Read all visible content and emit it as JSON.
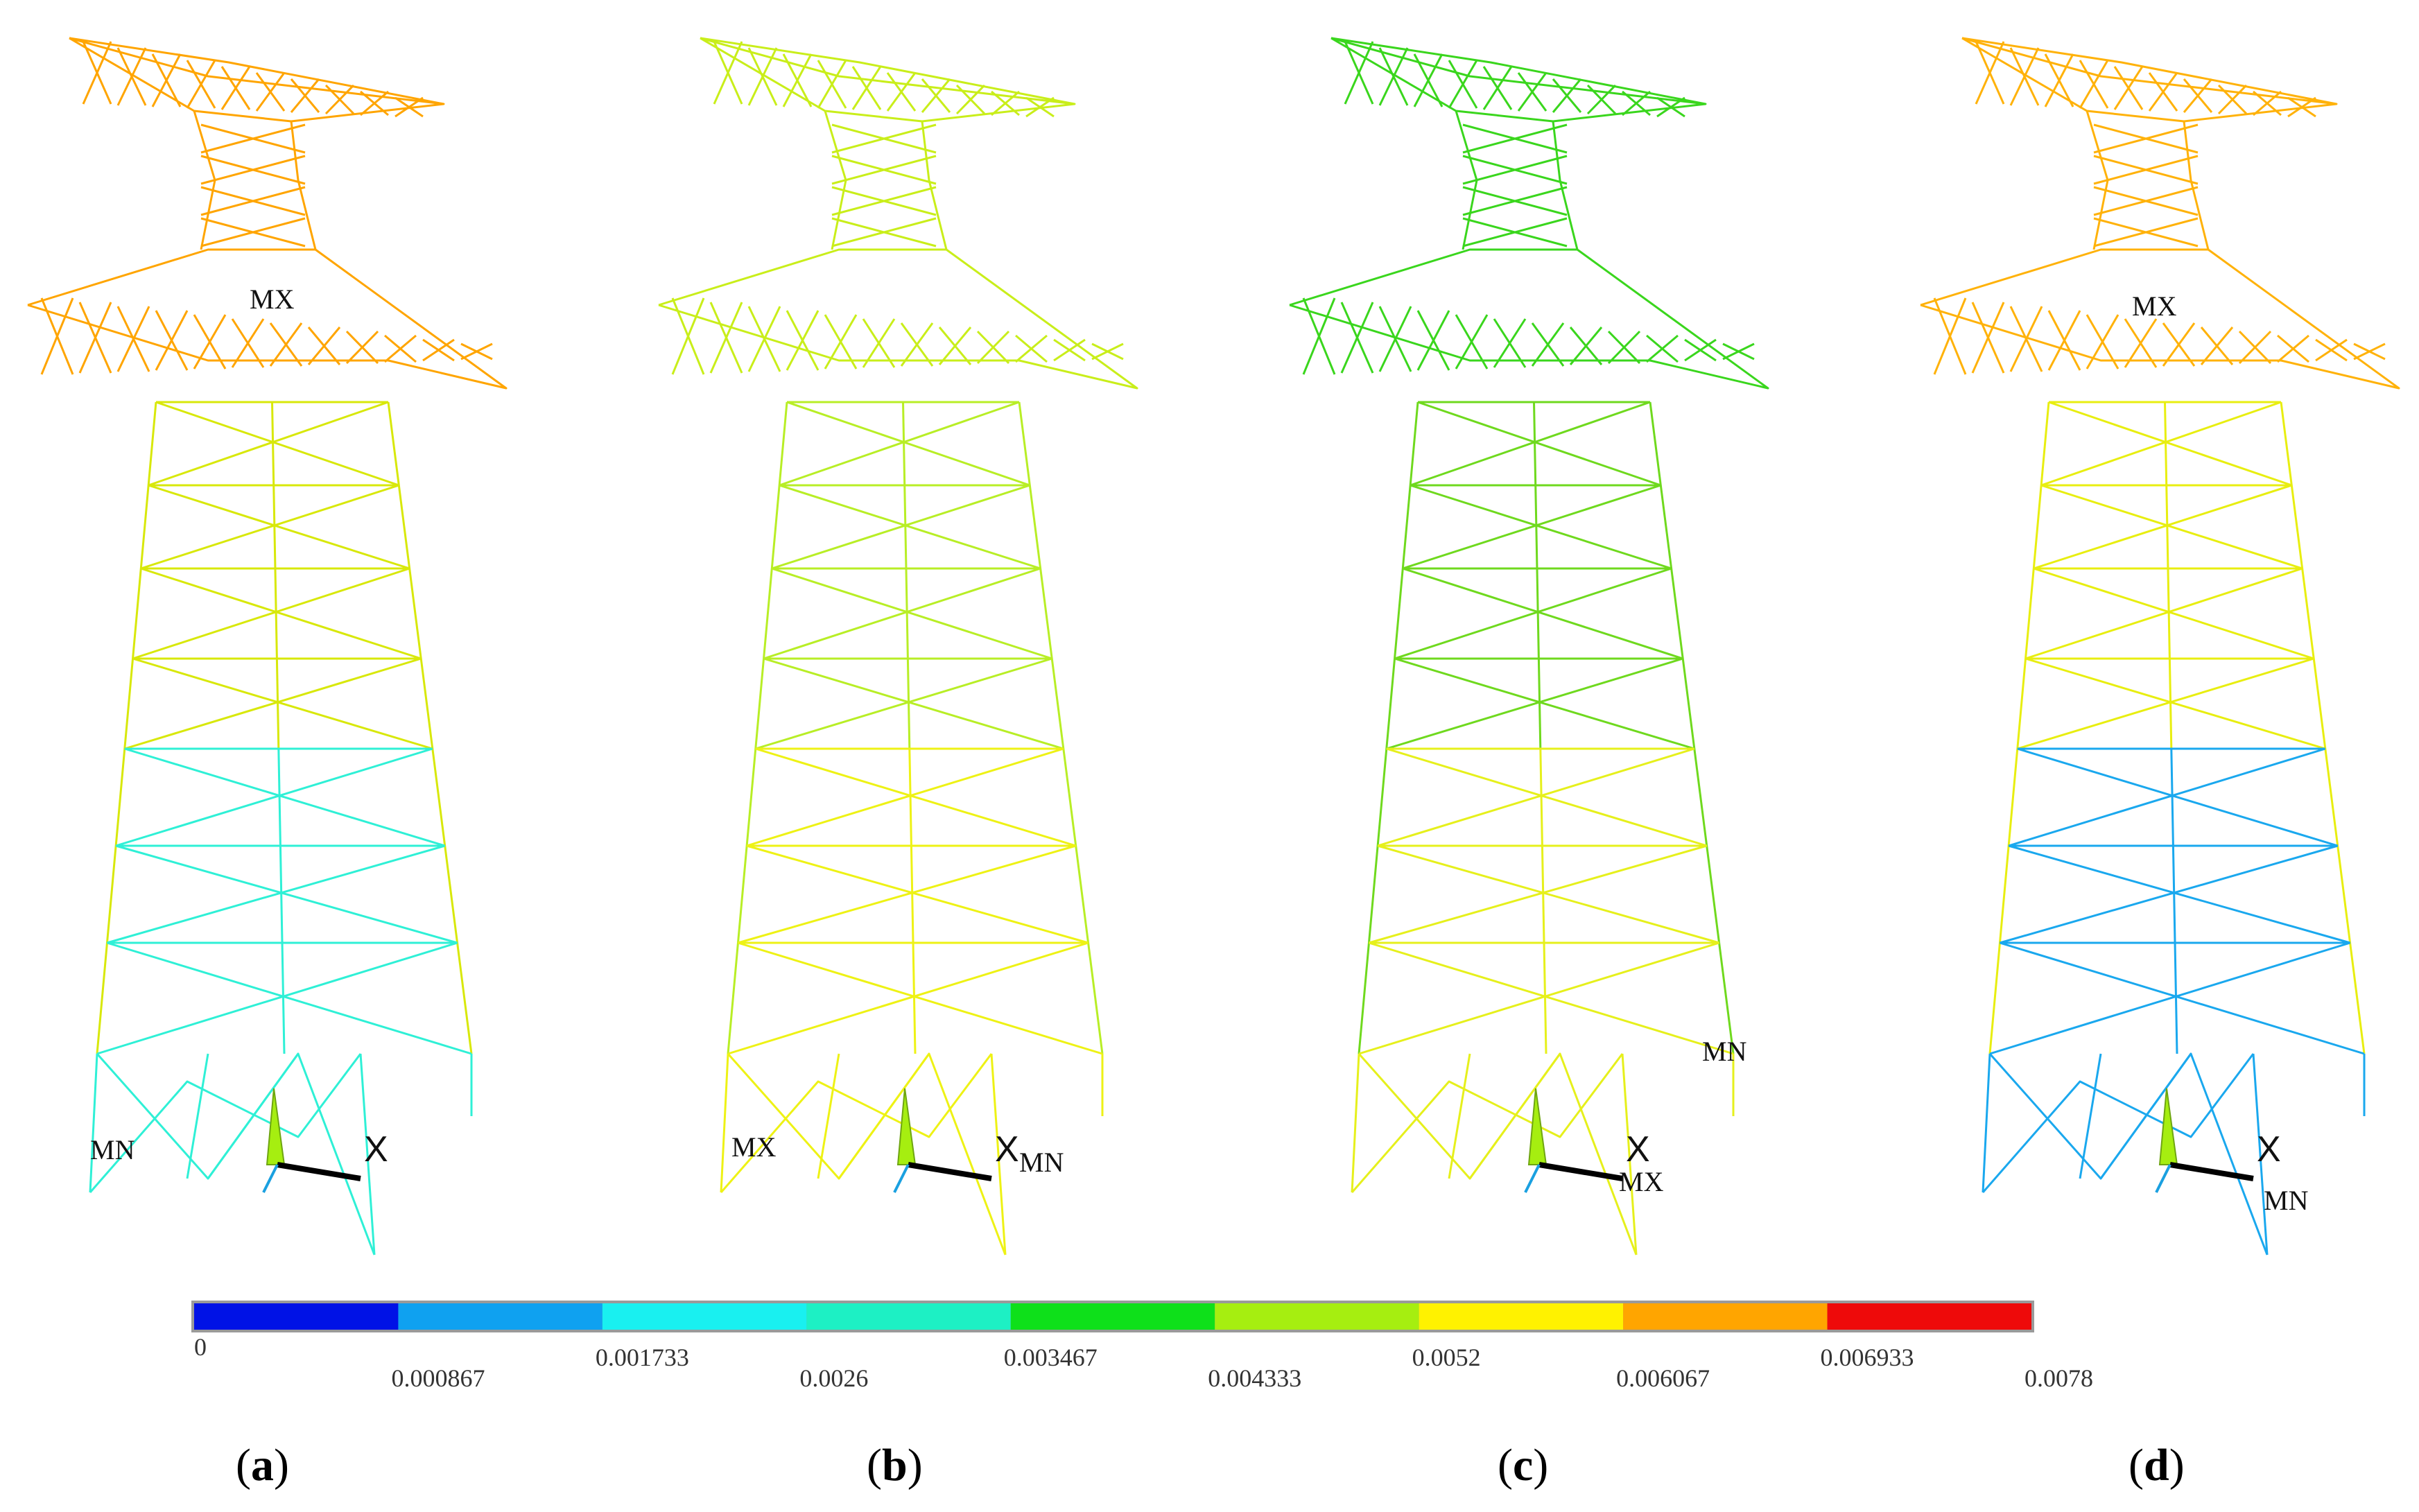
{
  "panels": [
    {
      "id": "a",
      "label_open": "(",
      "letter": "a",
      "label_close": ")",
      "base_color": "#ffa500",
      "mid_color": "#d8e80a",
      "low_color": "#2ff0d6",
      "markers": [
        {
          "text": "MX"
        },
        {
          "text": "MN"
        }
      ],
      "axis_letter": "X"
    },
    {
      "id": "b",
      "label_open": "(",
      "letter": "b",
      "label_close": ")",
      "base_color": "#c9ee1a",
      "mid_color": "#b8ee26",
      "low_color": "#eef215",
      "markers": [
        {
          "text": "MX"
        },
        {
          "text": "MN"
        }
      ],
      "axis_letter": "X"
    },
    {
      "id": "c",
      "label_open": "(",
      "letter": "c",
      "label_close": ")",
      "base_color": "#3ad61d",
      "mid_color": "#6fd91e",
      "low_color": "#e6f01c",
      "markers": [
        {
          "text": "MN"
        },
        {
          "text": "MX"
        }
      ],
      "axis_letter": "X"
    },
    {
      "id": "d",
      "label_open": "(",
      "letter": "d",
      "label_close": ")",
      "base_color": "#ffb20a",
      "mid_color": "#e8ee10",
      "low_color": "#1aa8ee",
      "markers": [
        {
          "text": "MX"
        },
        {
          "text": "MN"
        }
      ],
      "axis_letter": "X"
    }
  ],
  "legend": {
    "colors": [
      "#0012e6",
      "#0fa1f0",
      "#19f0f0",
      "#1df0c4",
      "#0ee01a",
      "#a6ee10",
      "#fff200",
      "#ffa500",
      "#ee0a0a"
    ],
    "ticks": [
      "0",
      "0.000867",
      "0.001733",
      "0.0026",
      "0.003467",
      "0.004333",
      "0.0052",
      "0.006067",
      "0.006933",
      "0.0078"
    ]
  }
}
